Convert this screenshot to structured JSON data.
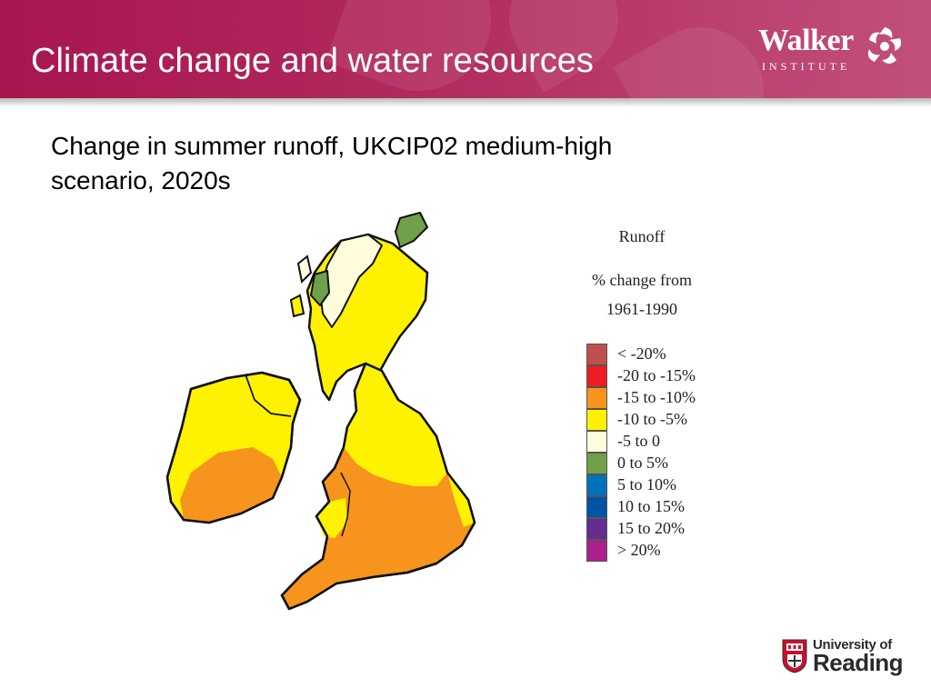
{
  "header": {
    "title": "Climate change and water resources"
  },
  "walker_logo": {
    "name": "Walker",
    "subtitle": "INSTITUTE"
  },
  "subtitle": "Change in summer runoff, UKCIP02 medium-high scenario, 2020s",
  "legend": {
    "title_line1": "Runoff",
    "title_line2": "% change from",
    "title_line3": "1961-1990",
    "items": [
      {
        "label": "< -20%",
        "color": "#c0504d"
      },
      {
        "label": "-20 to -15%",
        "color": "#ee1c24"
      },
      {
        "label": "-15 to -10%",
        "color": "#f7941d"
      },
      {
        "label": "-10 to -5%",
        "color": "#fff200"
      },
      {
        "label": "-5 to 0",
        "color": "#fffcdc"
      },
      {
        "label": "0 to 5%",
        "color": "#70a04a"
      },
      {
        "label": "5 to 10%",
        "color": "#0072bc"
      },
      {
        "label": "10 to 15%",
        "color": "#0054a6"
      },
      {
        "label": "15 to 20%",
        "color": "#662d91"
      },
      {
        "label": "> 20%",
        "color": "#ac1f8e"
      }
    ]
  },
  "university_logo": {
    "line1": "University of",
    "line2": "Reading"
  },
  "colors": {
    "header_bg": "#a8164f",
    "header_text": "#ffffff",
    "map_outline": "#111111"
  }
}
